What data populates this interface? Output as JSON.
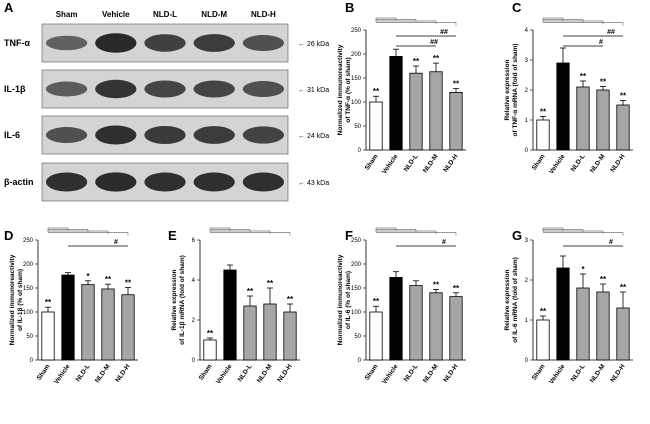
{
  "blot": {
    "panel": "A",
    "lanes": [
      "Sham",
      "Vehicle",
      "NLD-L",
      "NLD-M",
      "NLD-H"
    ],
    "proteins": [
      {
        "name": "TNF-α",
        "kda": "26 kDa",
        "intensities": [
          0.45,
          0.95,
          0.75,
          0.78,
          0.6
        ]
      },
      {
        "name": "IL-1β",
        "kda": "31 kDa",
        "intensities": [
          0.5,
          0.85,
          0.7,
          0.7,
          0.6
        ]
      },
      {
        "name": "IL-6",
        "kda": "24 kDa",
        "intensities": [
          0.6,
          0.9,
          0.8,
          0.78,
          0.72
        ]
      },
      {
        "name": "β-actin",
        "kda": "43 kDa",
        "intensities": [
          0.9,
          0.92,
          0.9,
          0.9,
          0.9
        ]
      }
    ]
  },
  "chart_data": [
    {
      "panel": "B",
      "type": "bar",
      "categories": [
        "Sham",
        "Vehicle",
        "NLD-L",
        "NLD-M",
        "NLD-H"
      ],
      "values": [
        100,
        195,
        160,
        163,
        120
      ],
      "errors": [
        12,
        15,
        15,
        18,
        8
      ],
      "ylabel": "Normalized immunoreactivity of TNF-α (% of sham)",
      "ylim": [
        0,
        250
      ],
      "ticks": [
        0,
        50,
        100,
        150,
        200,
        250
      ],
      "sig": [
        "**",
        "",
        "**",
        "**",
        "**"
      ],
      "hashes": [
        "##",
        "##"
      ]
    },
    {
      "panel": "C",
      "type": "bar",
      "categories": [
        "Sham",
        "Vehicle",
        "NLD-L",
        "NLD-M",
        "NLD-H"
      ],
      "values": [
        1.0,
        2.9,
        2.1,
        2.0,
        1.5
      ],
      "errors": [
        0.12,
        0.5,
        0.2,
        0.12,
        0.15
      ],
      "ylabel": "Relative expression of TNF-α mRNA (fold of sham)",
      "ylim": [
        0,
        4
      ],
      "ticks": [
        0,
        1,
        2,
        3,
        4
      ],
      "sig": [
        "**",
        "",
        "**",
        "**",
        "**"
      ],
      "hashes": [
        "##",
        "#"
      ]
    },
    {
      "panel": "D",
      "type": "bar",
      "categories": [
        "Sham",
        "Vehicle",
        "NLD-L",
        "NLD-M",
        "NLD-H"
      ],
      "values": [
        100,
        177,
        157,
        148,
        136
      ],
      "errors": [
        10,
        5,
        8,
        10,
        15
      ],
      "ylabel": "Normalized immunoreactivity of IL-1β (% of sham)",
      "ylim": [
        0,
        250
      ],
      "ticks": [
        0,
        50,
        100,
        150,
        200,
        250
      ],
      "sig": [
        "**",
        "",
        "*",
        "**",
        "**"
      ],
      "hashes": [
        "#"
      ]
    },
    {
      "panel": "E",
      "type": "bar",
      "categories": [
        "Sham",
        "Vehicle",
        "NLD-L",
        "NLD-M",
        "NLD-H"
      ],
      "values": [
        1.0,
        4.5,
        2.7,
        2.8,
        2.4
      ],
      "errors": [
        0.1,
        0.25,
        0.5,
        0.8,
        0.4
      ],
      "ylabel": "Relative expression of IL-1β mRNA (fold of sham)",
      "ylim": [
        0,
        6
      ],
      "ticks": [
        0,
        2,
        4,
        6
      ],
      "sig": [
        "**",
        "",
        "**",
        "**",
        "**"
      ],
      "hashes": []
    },
    {
      "panel": "F",
      "type": "bar",
      "categories": [
        "Sham",
        "Vehicle",
        "NLD-L",
        "NLD-M",
        "NLD-H"
      ],
      "values": [
        100,
        172,
        155,
        140,
        132
      ],
      "errors": [
        12,
        12,
        10,
        7,
        8
      ],
      "ylabel": "Normalized immunoreactivity of IL-6 (% of sham)",
      "ylim": [
        0,
        250
      ],
      "ticks": [
        0,
        50,
        100,
        150,
        200,
        250
      ],
      "sig": [
        "**",
        "",
        "",
        "**",
        "**"
      ],
      "hashes": [
        "#"
      ]
    },
    {
      "panel": "G",
      "type": "bar",
      "categories": [
        "Sham",
        "Vehicle",
        "NLD-L",
        "NLD-M",
        "NLD-H"
      ],
      "values": [
        1.0,
        2.3,
        1.8,
        1.7,
        1.3
      ],
      "errors": [
        0.1,
        0.3,
        0.35,
        0.2,
        0.4
      ],
      "ylabel": "Relative expression of IL-6 mRNA (fold of sham)",
      "ylim": [
        0,
        3
      ],
      "ticks": [
        0,
        1,
        2,
        3
      ],
      "sig": [
        "**",
        "",
        "*",
        "**",
        "**"
      ],
      "hashes": [
        "#"
      ]
    }
  ],
  "colors": {
    "sham": "#ffffff",
    "vehicle": "#000000",
    "treated": "#a6a6a6",
    "band": "#1a1a1a",
    "blot_bg": "#d4d4d4"
  }
}
